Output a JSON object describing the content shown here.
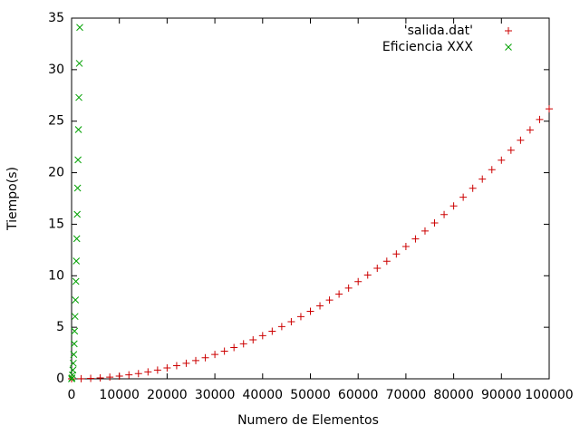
{
  "chart_data": {
    "type": "scatter",
    "xlabel": "Numero de Elementos",
    "ylabel": "Tiempo(s)",
    "xlim": [
      0,
      100000
    ],
    "ylim": [
      0,
      35
    ],
    "xticks": [
      0,
      10000,
      20000,
      30000,
      40000,
      50000,
      60000,
      70000,
      80000,
      90000,
      100000
    ],
    "yticks": [
      0,
      5,
      10,
      15,
      20,
      25,
      30,
      35
    ],
    "legend": "top-right",
    "series": [
      {
        "name": "'salida.dat'",
        "color": "#cc0000",
        "marker": "plus",
        "x": [
          0,
          2000,
          4000,
          6000,
          8000,
          10000,
          12000,
          14000,
          16000,
          18000,
          20000,
          22000,
          24000,
          26000,
          28000,
          30000,
          32000,
          34000,
          36000,
          38000,
          40000,
          42000,
          44000,
          46000,
          48000,
          50000,
          52000,
          54000,
          56000,
          58000,
          60000,
          62000,
          64000,
          66000,
          68000,
          70000,
          72000,
          74000,
          76000,
          78000,
          80000,
          82000,
          84000,
          86000,
          88000,
          90000,
          92000,
          94000,
          96000,
          98000,
          100000
        ],
        "values": [
          0,
          0.01,
          0.04,
          0.09,
          0.17,
          0.26,
          0.38,
          0.51,
          0.67,
          0.85,
          1.05,
          1.27,
          1.51,
          1.77,
          2.05,
          2.36,
          2.68,
          3.03,
          3.4,
          3.78,
          4.19,
          4.62,
          5.07,
          5.54,
          6.04,
          6.55,
          7.08,
          7.64,
          8.22,
          8.81,
          9.43,
          10.07,
          10.73,
          11.41,
          12.11,
          12.84,
          13.58,
          14.35,
          15.13,
          15.94,
          16.77,
          17.62,
          18.49,
          19.38,
          20.29,
          21.22,
          22.18,
          23.15,
          24.15,
          25.16,
          26.2
        ]
      },
      {
        "name": "Eficiencia XXX",
        "color": "#00a000",
        "marker": "cross",
        "x": [
          0,
          90,
          180,
          270,
          360,
          450,
          540,
          630,
          720,
          810,
          900,
          990,
          1080,
          1170,
          1260,
          1350,
          1440,
          1530,
          1620,
          1710
        ],
        "values": [
          0,
          0.09,
          0.38,
          0.85,
          1.51,
          2.36,
          3.4,
          4.63,
          6.05,
          7.65,
          9.45,
          11.43,
          13.6,
          15.96,
          18.51,
          21.25,
          24.18,
          27.3,
          30.61,
          34.1
        ]
      }
    ]
  }
}
